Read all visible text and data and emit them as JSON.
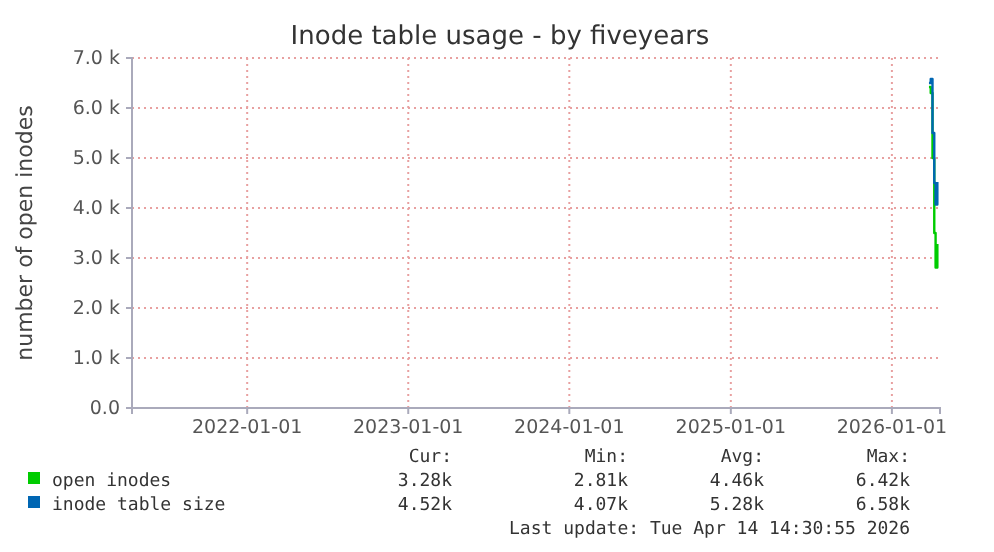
{
  "chart_data": {
    "type": "line",
    "title": "Inode table usage - by fiveyears",
    "ylabel": "number of open inodes",
    "x": [
      "2026-03-26",
      "2026-03-30",
      "2026-04-03",
      "2026-04-07",
      "2026-04-10",
      "2026-04-14"
    ],
    "series": [
      {
        "name": "open inodes",
        "color": "#00cc00",
        "values": [
          6420,
          6300,
          5000,
          3500,
          2810,
          3280
        ]
      },
      {
        "name": "inode table size",
        "color": "#0066b3",
        "values": [
          6500,
          6580,
          5500,
          4500,
          4070,
          4520
        ]
      }
    ],
    "xlim": [
      "2021-04-15",
      "2026-04-20"
    ],
    "xticks": [
      {
        "value": "2022-01-01",
        "label": "2022-01-01"
      },
      {
        "value": "2023-01-01",
        "label": "2023-01-01"
      },
      {
        "value": "2024-01-01",
        "label": "2024-01-01"
      },
      {
        "value": "2025-01-01",
        "label": "2025-01-01"
      },
      {
        "value": "2026-01-01",
        "label": "2026-01-01"
      }
    ],
    "ylim": [
      0,
      7000
    ],
    "yticks": [
      {
        "value": 0,
        "label": "0.0"
      },
      {
        "value": 1000,
        "label": "1.0 k"
      },
      {
        "value": 2000,
        "label": "2.0 k"
      },
      {
        "value": 3000,
        "label": "3.0 k"
      },
      {
        "value": 4000,
        "label": "4.0 k"
      },
      {
        "value": 5000,
        "label": "5.0 k"
      },
      {
        "value": 6000,
        "label": "6.0 k"
      },
      {
        "value": 7000,
        "label": "7.0 k"
      }
    ],
    "grid": true,
    "legend": "bottom left",
    "annotations": [
      "Cur:",
      "Min:",
      "Avg:",
      "Max:",
      "3.28k",
      "2.81k",
      "4.46k",
      "6.42k",
      "4.52k",
      "4.07k",
      "5.28k",
      "6.58k",
      "Last update: Tue Apr 14 14:30:55 2026"
    ]
  }
}
